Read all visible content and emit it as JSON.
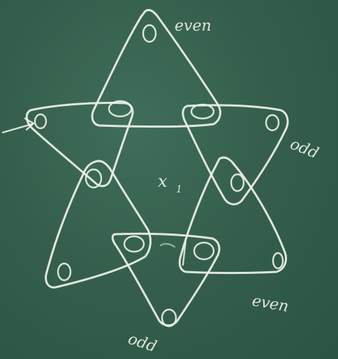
{
  "labels": {
    "top": "even",
    "right": "odd",
    "bottom_right": "even",
    "bottom_left": "odd",
    "center": "x",
    "center_sub": "1"
  },
  "vertex_label": "0"
}
